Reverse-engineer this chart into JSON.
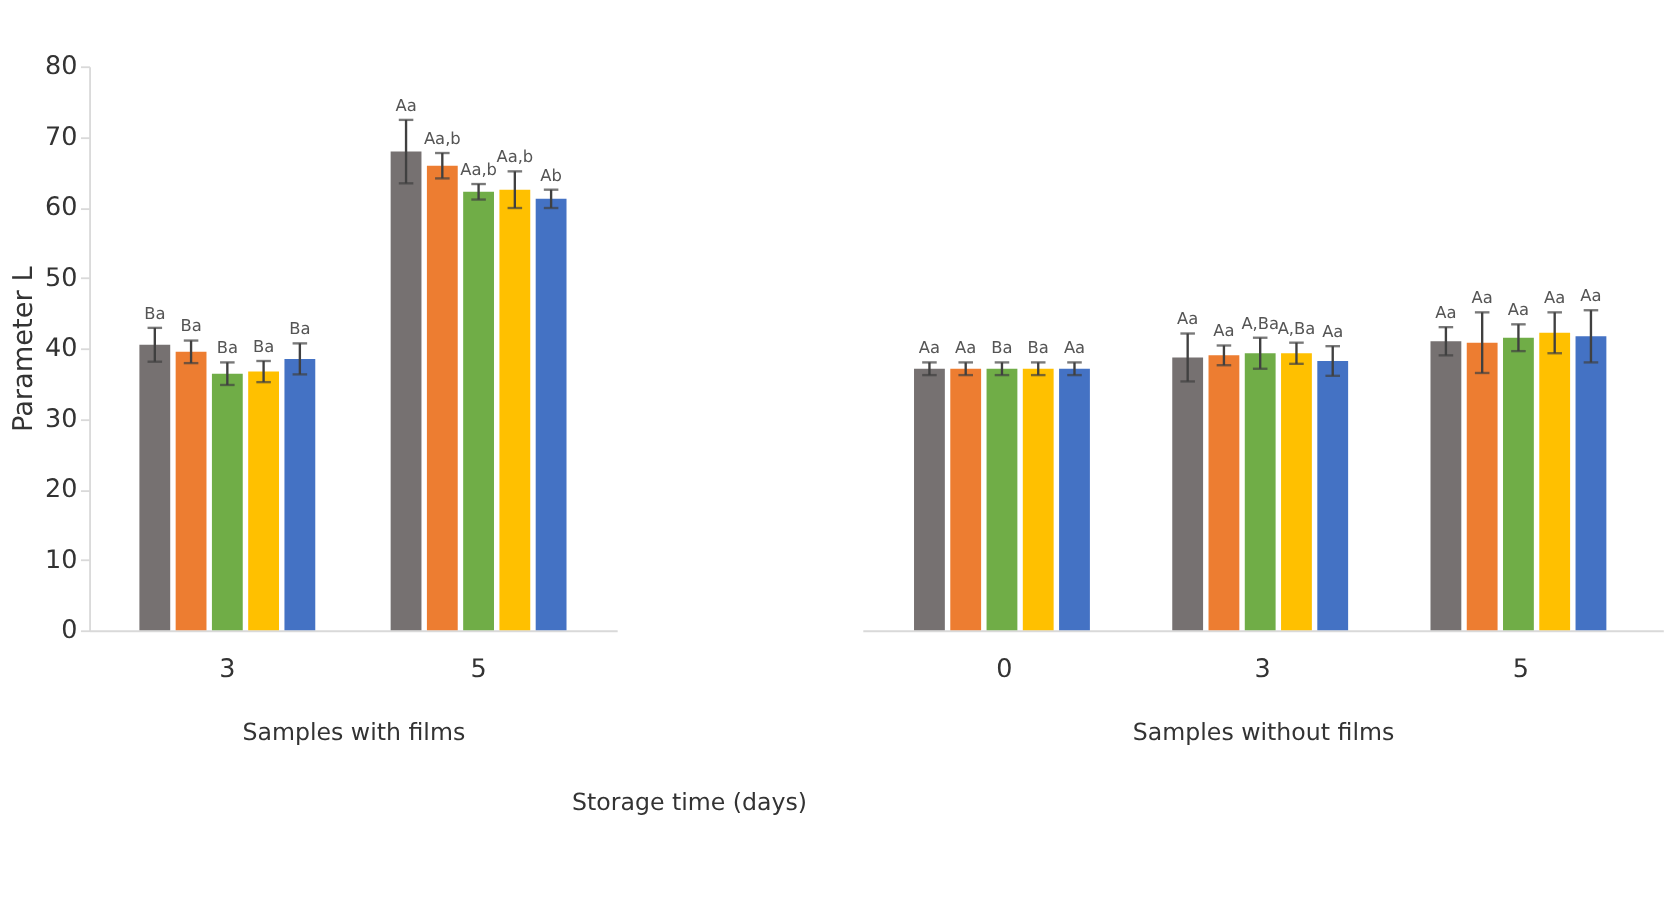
{
  "chart_data": [
    {
      "type": "bar",
      "ylabel": "Parameter L",
      "xlabel": "Samples with films",
      "categories": [
        "3",
        "5"
      ],
      "ylim": [
        0,
        80
      ],
      "yticks": [
        0,
        10,
        20,
        30,
        40,
        50,
        60,
        70,
        80
      ],
      "grid": false,
      "annotations": [
        "Storage time (days)"
      ],
      "series": [
        {
          "color": "#767171",
          "values": [
            40.5,
            67.9
          ],
          "errors": [
            2.4,
            4.5
          ],
          "value_labels": [
            "Ba",
            "Aa"
          ]
        },
        {
          "color": "#ed7d31",
          "values": [
            39.5,
            65.9
          ],
          "errors": [
            1.6,
            1.8
          ],
          "value_labels": [
            "Ba",
            "Aa,b"
          ]
        },
        {
          "color": "#70ad47",
          "values": [
            36.4,
            62.2
          ],
          "errors": [
            1.6,
            1.1
          ],
          "value_labels": [
            "Ba",
            "Aa,b"
          ]
        },
        {
          "color": "#ffc000",
          "values": [
            36.7,
            62.5
          ],
          "errors": [
            1.5,
            2.6
          ],
          "value_labels": [
            "Ba",
            "Aa,b"
          ]
        },
        {
          "color": "#4472c4",
          "values": [
            38.5,
            61.2
          ],
          "errors": [
            2.2,
            1.3
          ],
          "value_labels": [
            "Ba",
            "Ab"
          ]
        }
      ]
    },
    {
      "type": "bar",
      "xlabel": "Samples without films",
      "categories": [
        "0",
        "3",
        "5"
      ],
      "ylim": [
        0,
        80
      ],
      "tick_labels": "x",
      "grid": false,
      "series": [
        {
          "color": "#767171",
          "values": [
            37.1,
            38.7,
            41.0
          ],
          "errors": [
            0.9,
            3.4,
            2.0
          ],
          "value_labels": [
            "Aa",
            "Aa",
            "Aa"
          ]
        },
        {
          "color": "#ed7d31",
          "values": [
            37.1,
            39.0,
            40.8
          ],
          "errors": [
            0.9,
            1.4,
            4.3
          ],
          "value_labels": [
            "Aa",
            "Aa",
            "Aa"
          ]
        },
        {
          "color": "#70ad47",
          "values": [
            37.1,
            39.3,
            41.5
          ],
          "errors": [
            0.9,
            2.2,
            1.9
          ],
          "value_labels": [
            "Ba",
            "A,Ba",
            "Aa"
          ]
        },
        {
          "color": "#ffc000",
          "values": [
            37.1,
            39.3,
            42.2
          ],
          "errors": [
            0.9,
            1.5,
            2.9
          ],
          "value_labels": [
            "Ba",
            "A,Ba",
            "Aa"
          ]
        },
        {
          "color": "#4472c4",
          "values": [
            37.1,
            38.2,
            41.7
          ],
          "errors": [
            0.9,
            2.1,
            3.7
          ],
          "value_labels": [
            "Aa",
            "Aa",
            "Aa"
          ]
        }
      ]
    }
  ]
}
